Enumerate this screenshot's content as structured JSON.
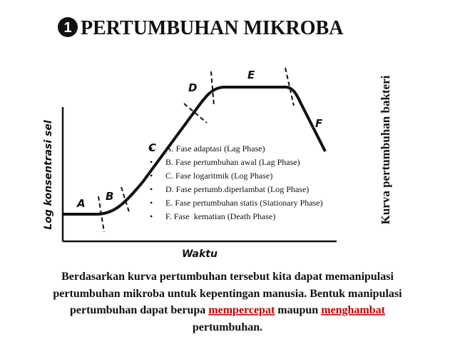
{
  "title": {
    "badge": "1",
    "text": "PERTUMBUHAN MIKROBA"
  },
  "diagram": {
    "y_axis_label": "Log konsentrasi sel",
    "x_axis_label": "Waktu",
    "phases": [
      "A",
      "B",
      "C",
      "D",
      "E",
      "F"
    ],
    "side_label": "Kurva pertumbuhan bakteri"
  },
  "legend": {
    "items": [
      "A. Fase adaptasi (Lag Phase)",
      "B. Fase pertumbuhan awal (Lag Phase)",
      "C. Fase logaritmik (Log Phase)",
      "D. Fase pertumb.diperlambat (Log Phase)",
      "E. Fase pertumbuhan statis (Stationary Phase)",
      "F. Fase  kematian (Death Phase)"
    ]
  },
  "paragraph": {
    "lines": [
      [
        "Berdasarkan kurva pertumbuhan tersebut kita dapat memanipulasi"
      ],
      [
        "pertumbuhan mikroba untuk kepentingan manusia. Bentuk manipulasi"
      ],
      [
        "pertumbuhan dapat berupa ",
        "mempercepat",
        " maupun ",
        "menghambat"
      ],
      [
        "pertumbuhan."
      ]
    ]
  }
}
